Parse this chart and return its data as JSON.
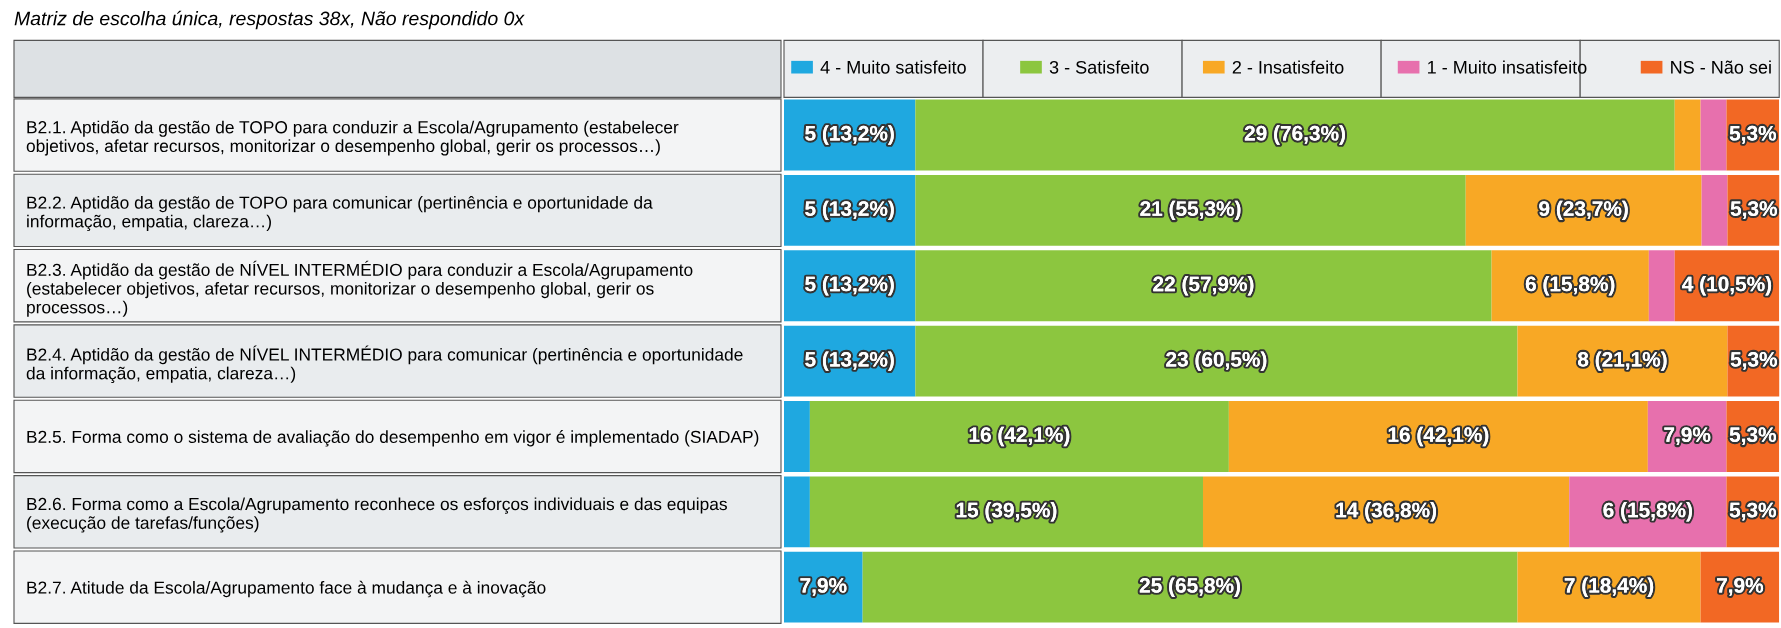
{
  "chart_data": {
    "type": "bar",
    "orientation": "horizontal",
    "stacked": true,
    "title": "Matriz de escolha única, respostas 38x, Não respondido 0x",
    "legend": "top",
    "tick_labels": "y",
    "xlim": [
      0,
      100
    ],
    "categories": [
      "B2.1. Aptidão da gestão de TOPO para conduzir a Escola/Agrupamento (estabelecer objetivos, afetar recursos, monitorizar o desempenho global, gerir os processos…)",
      "B2.2. Aptidão da gestão de TOPO para comunicar (pertinência e oportunidade da informação, empatia, clareza…)",
      "B2.3. Aptidão da gestão de NÍVEL INTERMÉDIO para conduzir a Escola/Agrupamento (estabelecer objetivos, afetar recursos, monitorizar o desempenho global, gerir os processos…)",
      "B2.4. Aptidão da gestão de NÍVEL INTERMÉDIO para comunicar (pertinência e oportunidade da informação, empatia, clareza…)",
      "B2.5. Forma como o sistema de avaliação do desempenho em vigor é implementado (SIADAP)",
      "B2.6. Forma como a Escola/Agrupamento reconhece os esforços individuais e das equipas (execução de tarefas/funções)",
      "B2.7. Atitude da Escola/Agrupamento face à mudança e à inovação"
    ],
    "series": [
      {
        "name": "4 - Muito satisfeito",
        "color": "#1fa8e0",
        "values": [
          13.2,
          13.2,
          13.2,
          13.2,
          2.6,
          2.6,
          7.9
        ],
        "value_labels": [
          "5 (13,2%)",
          "5 (13,2%)",
          "5 (13,2%)",
          "5 (13,2%)",
          null,
          null,
          "7,9%"
        ]
      },
      {
        "name": "3 - Satisfeito",
        "color": "#8cc63f",
        "values": [
          76.3,
          55.3,
          57.9,
          60.5,
          42.1,
          39.5,
          65.8
        ],
        "value_labels": [
          "29 (76,3%)",
          "21 (55,3%)",
          "22 (57,9%)",
          "23 (60,5%)",
          "16 (42,1%)",
          "15 (39,5%)",
          "25 (65,8%)"
        ]
      },
      {
        "name": "2 - Insatisfeito",
        "color": "#f8a825",
        "values": [
          2.6,
          23.7,
          15.8,
          21.1,
          42.1,
          36.8,
          18.4
        ],
        "value_labels": [
          null,
          "9 (23,7%)",
          "6 (15,8%)",
          "8 (21,1%)",
          "16 (42,1%)",
          "14 (36,8%)",
          "7 (18,4%)"
        ]
      },
      {
        "name": "1 - Muito insatisfeito",
        "color": "#e770ad",
        "values": [
          2.6,
          2.6,
          2.6,
          null,
          7.9,
          15.8,
          null
        ],
        "value_labels": [
          null,
          null,
          null,
          null,
          "7,9%",
          "6 (15,8%)",
          null
        ]
      },
      {
        "name": "NS - Não sei",
        "color": "#f26824",
        "values": [
          5.3,
          5.3,
          10.5,
          5.3,
          5.3,
          5.3,
          7.9
        ],
        "value_labels": [
          "5,3%",
          "5,3%",
          "4 (10,5%)",
          "5,3%",
          "5,3%",
          "5,3%",
          "7,9%"
        ]
      }
    ]
  }
}
